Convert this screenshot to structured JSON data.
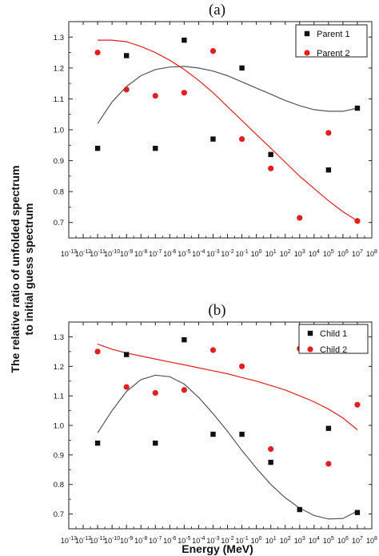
{
  "chart_data": [
    {
      "type": "scatter",
      "panel_label": "(a)",
      "xscale": "log",
      "xlim": [
        1e-13,
        100000000.0
      ],
      "ylim": [
        0.65,
        1.35
      ],
      "xticks": [
        "10-13",
        "10-12",
        "10-11",
        "10-10",
        "10-9",
        "10-8",
        "10-7",
        "10-6",
        "10-5",
        "10-4",
        "10-3",
        "10-2",
        "10-1",
        "100",
        "101",
        "102",
        "103",
        "104",
        "105",
        "106",
        "107",
        "108"
      ],
      "yticks": [
        "0.7",
        "0.8",
        "0.9",
        "1.0",
        "1.1",
        "1.2",
        "1.3"
      ],
      "legend_position": "top-right",
      "series": [
        {
          "name": "Parent 1",
          "color": "#111111",
          "marker": "square",
          "points": [
            {
              "x": 1e-11,
              "y": 0.94
            },
            {
              "x": 1e-09,
              "y": 1.24
            },
            {
              "x": 1e-07,
              "y": 0.94
            },
            {
              "x": 1e-05,
              "y": 1.29
            },
            {
              "x": 0.001,
              "y": 0.97
            },
            {
              "x": 0.1,
              "y": 1.2
            },
            {
              "x": 10.0,
              "y": 0.92
            },
            {
              "x": 1000.0,
              "y": 1.26
            },
            {
              "x": 100000.0,
              "y": 0.87
            },
            {
              "x": 10000000.0,
              "y": 1.07
            }
          ],
          "fit": [
            {
              "x": 1e-11,
              "y": 1.02
            },
            {
              "x": 1e-10,
              "y": 1.09
            },
            {
              "x": 1e-09,
              "y": 1.14
            },
            {
              "x": 1e-08,
              "y": 1.175
            },
            {
              "x": 1e-07,
              "y": 1.195
            },
            {
              "x": 1e-06,
              "y": 1.203
            },
            {
              "x": 1e-05,
              "y": 1.205
            },
            {
              "x": 0.0001,
              "y": 1.2
            },
            {
              "x": 0.001,
              "y": 1.19
            },
            {
              "x": 0.01,
              "y": 1.175
            },
            {
              "x": 0.1,
              "y": 1.155
            },
            {
              "x": 1.0,
              "y": 1.135
            },
            {
              "x": 10.0,
              "y": 1.115
            },
            {
              "x": 100.0,
              "y": 1.095
            },
            {
              "x": 1000.0,
              "y": 1.078
            },
            {
              "x": 10000.0,
              "y": 1.065
            },
            {
              "x": 100000.0,
              "y": 1.06
            },
            {
              "x": 1000000.0,
              "y": 1.06
            },
            {
              "x": 10000000.0,
              "y": 1.07
            }
          ]
        },
        {
          "name": "Parent 2",
          "color": "#e02020",
          "marker": "circle",
          "points": [
            {
              "x": 1e-11,
              "y": 1.25
            },
            {
              "x": 1e-09,
              "y": 1.13
            },
            {
              "x": 1e-07,
              "y": 1.11
            },
            {
              "x": 1e-05,
              "y": 1.12
            },
            {
              "x": 0.001,
              "y": 1.255
            },
            {
              "x": 0.1,
              "y": 0.97
            },
            {
              "x": 10.0,
              "y": 0.875
            },
            {
              "x": 1000.0,
              "y": 0.715
            },
            {
              "x": 100000.0,
              "y": 0.99
            },
            {
              "x": 10000000.0,
              "y": 0.705
            }
          ],
          "fit": [
            {
              "x": 1e-11,
              "y": 1.29
            },
            {
              "x": 1e-10,
              "y": 1.29
            },
            {
              "x": 1e-09,
              "y": 1.285
            },
            {
              "x": 1e-08,
              "y": 1.27
            },
            {
              "x": 1e-07,
              "y": 1.25
            },
            {
              "x": 1e-06,
              "y": 1.225
            },
            {
              "x": 1e-05,
              "y": 1.195
            },
            {
              "x": 0.0001,
              "y": 1.16
            },
            {
              "x": 0.001,
              "y": 1.12
            },
            {
              "x": 0.01,
              "y": 1.075
            },
            {
              "x": 0.1,
              "y": 1.03
            },
            {
              "x": 1.0,
              "y": 0.985
            },
            {
              "x": 10.0,
              "y": 0.94
            },
            {
              "x": 100.0,
              "y": 0.895
            },
            {
              "x": 1000.0,
              "y": 0.85
            },
            {
              "x": 10000.0,
              "y": 0.81
            },
            {
              "x": 100000.0,
              "y": 0.77
            },
            {
              "x": 1000000.0,
              "y": 0.735
            },
            {
              "x": 10000000.0,
              "y": 0.705
            }
          ]
        }
      ]
    },
    {
      "type": "scatter",
      "panel_label": "(b)",
      "xscale": "log",
      "xlim": [
        1e-13,
        100000000.0
      ],
      "ylim": [
        0.65,
        1.35
      ],
      "xticks": [
        "10-13",
        "10-12",
        "10-11",
        "10-10",
        "10-9",
        "10-8",
        "10-7",
        "10-6",
        "10-5",
        "10-4",
        "10-3",
        "10-2",
        "10-1",
        "100",
        "101",
        "102",
        "103",
        "104",
        "105",
        "106",
        "107",
        "108"
      ],
      "yticks": [
        "0.7",
        "0.8",
        "0.9",
        "1.0",
        "1.1",
        "1.2",
        "1.3"
      ],
      "legend_position": "top-right",
      "series": [
        {
          "name": "Child 1",
          "color": "#111111",
          "marker": "square",
          "points": [
            {
              "x": 1e-11,
              "y": 0.94
            },
            {
              "x": 1e-09,
              "y": 1.24
            },
            {
              "x": 1e-07,
              "y": 0.94
            },
            {
              "x": 1e-05,
              "y": 1.29
            },
            {
              "x": 0.001,
              "y": 0.97
            },
            {
              "x": 0.1,
              "y": 0.97
            },
            {
              "x": 10.0,
              "y": 0.875
            },
            {
              "x": 1000.0,
              "y": 0.715
            },
            {
              "x": 100000.0,
              "y": 0.99
            },
            {
              "x": 10000000.0,
              "y": 0.705
            }
          ],
          "fit": [
            {
              "x": 1e-11,
              "y": 0.975
            },
            {
              "x": 1e-10,
              "y": 1.05
            },
            {
              "x": 1e-09,
              "y": 1.115
            },
            {
              "x": 1e-08,
              "y": 1.155
            },
            {
              "x": 1e-07,
              "y": 1.17
            },
            {
              "x": 1e-06,
              "y": 1.165
            },
            {
              "x": 1e-05,
              "y": 1.14
            },
            {
              "x": 0.0001,
              "y": 1.095
            },
            {
              "x": 0.001,
              "y": 1.04
            },
            {
              "x": 0.01,
              "y": 0.98
            },
            {
              "x": 0.1,
              "y": 0.915
            },
            {
              "x": 1.0,
              "y": 0.855
            },
            {
              "x": 10.0,
              "y": 0.8
            },
            {
              "x": 100.0,
              "y": 0.755
            },
            {
              "x": 1000.0,
              "y": 0.72
            },
            {
              "x": 10000.0,
              "y": 0.695
            },
            {
              "x": 100000.0,
              "y": 0.683
            },
            {
              "x": 1000000.0,
              "y": 0.685
            },
            {
              "x": 10000000.0,
              "y": 0.71
            }
          ]
        },
        {
          "name": "Child 2",
          "color": "#e02020",
          "marker": "circle",
          "points": [
            {
              "x": 1e-11,
              "y": 1.25
            },
            {
              "x": 1e-09,
              "y": 1.13
            },
            {
              "x": 1e-07,
              "y": 1.11
            },
            {
              "x": 1e-05,
              "y": 1.12
            },
            {
              "x": 0.001,
              "y": 1.255
            },
            {
              "x": 0.1,
              "y": 1.2
            },
            {
              "x": 10.0,
              "y": 0.92
            },
            {
              "x": 1000.0,
              "y": 1.26
            },
            {
              "x": 100000.0,
              "y": 0.87
            },
            {
              "x": 10000000.0,
              "y": 1.07
            }
          ],
          "fit": [
            {
              "x": 1e-11,
              "y": 1.275
            },
            {
              "x": 1e-10,
              "y": 1.258
            },
            {
              "x": 1e-09,
              "y": 1.245
            },
            {
              "x": 1e-08,
              "y": 1.235
            },
            {
              "x": 1e-07,
              "y": 1.225
            },
            {
              "x": 1e-06,
              "y": 1.215
            },
            {
              "x": 1e-05,
              "y": 1.205
            },
            {
              "x": 0.0001,
              "y": 1.195
            },
            {
              "x": 0.001,
              "y": 1.185
            },
            {
              "x": 0.01,
              "y": 1.175
            },
            {
              "x": 0.1,
              "y": 1.162
            },
            {
              "x": 1.0,
              "y": 1.15
            },
            {
              "x": 10.0,
              "y": 1.135
            },
            {
              "x": 100.0,
              "y": 1.12
            },
            {
              "x": 1000.0,
              "y": 1.1
            },
            {
              "x": 10000.0,
              "y": 1.08
            },
            {
              "x": 100000.0,
              "y": 1.055
            },
            {
              "x": 1000000.0,
              "y": 1.025
            },
            {
              "x": 10000000.0,
              "y": 0.985
            }
          ]
        }
      ]
    }
  ],
  "shared": {
    "ylabel_line1": "The relative ratio of unfolded spectrum",
    "ylabel_line2": "to initial guess spectrum",
    "xlabel": "Energy (MeV)"
  }
}
